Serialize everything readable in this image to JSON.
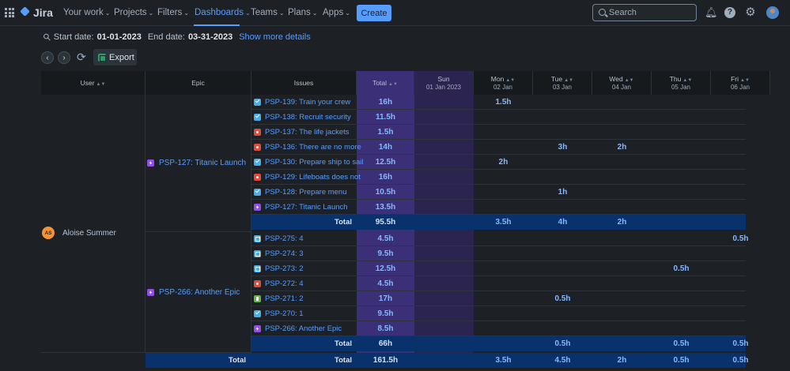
{
  "nav": {
    "logo_text": "Jira",
    "items": [
      {
        "label": "Your work"
      },
      {
        "label": "Projects"
      },
      {
        "label": "Filters"
      },
      {
        "label": "Dashboards"
      },
      {
        "label": "Teams"
      },
      {
        "label": "Plans"
      },
      {
        "label": "Apps"
      }
    ],
    "active_item": "Dashboards",
    "create_label": "Create",
    "search_placeholder": "Search",
    "accent_color": "#579dff"
  },
  "details": {
    "start_label": "Start date:",
    "start_value": "01-01-2023",
    "end_label": "End date:",
    "end_value": "03-31-2023",
    "more_link": "Show more details"
  },
  "toolbar": {
    "export_label": "Export"
  },
  "table": {
    "headers": {
      "user": "User",
      "epic": "Epic",
      "issues": "Issues",
      "total": "Total",
      "days": [
        {
          "day": "Sun",
          "date": "01 Jan 2023"
        },
        {
          "day": "Mon",
          "date": "02 Jan"
        },
        {
          "day": "Tue",
          "date": "03 Jan"
        },
        {
          "day": "Wed",
          "date": "04 Jan"
        },
        {
          "day": "Thu",
          "date": "05 Jan"
        },
        {
          "day": "Fri",
          "date": "06 Jan"
        }
      ]
    },
    "user": {
      "initials": "AS",
      "name": "Aloise Summer"
    },
    "epics": [
      {
        "label": "PSP-127: Titanic Launch",
        "issues": [
          {
            "type": "task",
            "label": "PSP-139: Train your crew",
            "total": "16h",
            "days": [
              "",
              "1.5h",
              "",
              "",
              "",
              ""
            ]
          },
          {
            "type": "task",
            "label": "PSP-138: Recruit security",
            "total": "11.5h",
            "days": [
              "",
              "",
              "",
              "",
              "",
              ""
            ]
          },
          {
            "type": "bug",
            "label": "PSP-137: The life jackets",
            "total": "1.5h",
            "days": [
              "",
              "",
              "",
              "",
              "",
              ""
            ]
          },
          {
            "type": "bug",
            "label": "PSP-136: There are no more",
            "total": "14h",
            "days": [
              "",
              "",
              "3h",
              "2h",
              "",
              ""
            ]
          },
          {
            "type": "task",
            "label": "PSP-130: Prepare ship to sail",
            "total": "12.5h",
            "days": [
              "",
              "2h",
              "",
              "",
              "",
              ""
            ]
          },
          {
            "type": "bug",
            "label": "PSP-129: Lifeboats does not",
            "total": "16h",
            "days": [
              "",
              "",
              "",
              "",
              "",
              ""
            ]
          },
          {
            "type": "task",
            "label": "PSP-128: Prepare menu",
            "total": "10.5h",
            "days": [
              "",
              "",
              "1h",
              "",
              "",
              ""
            ]
          },
          {
            "type": "epic",
            "label": "PSP-127: Titanic Launch",
            "total": "13.5h",
            "days": [
              "",
              "",
              "",
              "",
              "",
              ""
            ]
          }
        ],
        "total_label": "Total",
        "total": "95.5h",
        "totals_by_day": [
          "",
          "3.5h",
          "4h",
          "2h",
          "",
          ""
        ]
      },
      {
        "label": "PSP-266: Another Epic",
        "issues": [
          {
            "type": "subtask",
            "label": "PSP-275: 4",
            "total": "4.5h",
            "days": [
              "",
              "",
              "",
              "",
              "",
              "0.5h"
            ]
          },
          {
            "type": "subtask",
            "label": "PSP-274: 3",
            "total": "9.5h",
            "days": [
              "",
              "",
              "",
              "",
              "",
              ""
            ]
          },
          {
            "type": "subtask",
            "label": "PSP-273: 2",
            "total": "12.5h",
            "days": [
              "",
              "",
              "",
              "",
              "0.5h",
              ""
            ]
          },
          {
            "type": "bug",
            "label": "PSP-272: 4",
            "total": "4.5h",
            "days": [
              "",
              "",
              "",
              "",
              "",
              ""
            ]
          },
          {
            "type": "story",
            "label": "PSP-271: 2",
            "total": "17h",
            "days": [
              "",
              "",
              "0.5h",
              "",
              "",
              ""
            ]
          },
          {
            "type": "task",
            "label": "PSP-270: 1",
            "total": "9.5h",
            "days": [
              "",
              "",
              "",
              "",
              "",
              ""
            ]
          },
          {
            "type": "epic",
            "label": "PSP-266: Another Epic",
            "total": "8.5h",
            "days": [
              "",
              "",
              "",
              "",
              "",
              ""
            ]
          }
        ],
        "total_label": "Total",
        "total": "66h",
        "totals_by_day": [
          "",
          "",
          "0.5h",
          "",
          "0.5h",
          "0.5h"
        ]
      }
    ],
    "user_total_label": "Total",
    "user_total_issue_label": "Total",
    "user_total": "161.5h",
    "user_totals_by_day": [
      "",
      "3.5h",
      "4.5h",
      "2h",
      "0.5h",
      "0.5h"
    ]
  }
}
